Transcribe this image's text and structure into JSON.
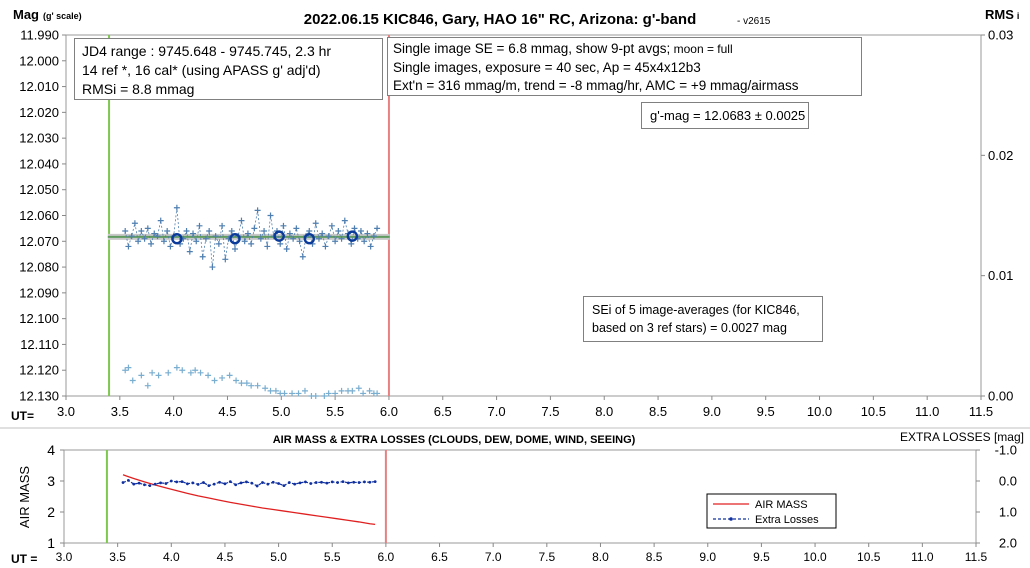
{
  "colors": {
    "upper_points": "#4f7fb0",
    "avg_marker": "#0a3a9a",
    "ref_points": "#7aaed0",
    "mean_band": "#c8c8c8",
    "mean_line": "#5f9a5f",
    "start_line": "#7ec850",
    "end_line": "#e88080",
    "airmass_line": "#e02020",
    "losses_line": "#1030a0"
  },
  "chart_data": [
    {
      "type": "scatter",
      "title": "2022.06.15 KIC846, Gary, HAO 16\" RC, Arizona: g'-band",
      "version": "- v2615",
      "ylabel_main": "Mag",
      "ylabel_sub": "(g' scale)",
      "y2label_main": "RMS",
      "y2label_sub": "i",
      "xlabel": "UT=",
      "xlim": [
        3.0,
        11.5
      ],
      "ylim": [
        12.13,
        11.99
      ],
      "y2lim": [
        0.0,
        0.03
      ],
      "x_ticks": [
        "3.0",
        "3.5",
        "4.0",
        "4.5",
        "5.0",
        "5.5",
        "6.0",
        "6.5",
        "7.0",
        "7.5",
        "8.0",
        "8.5",
        "9.0",
        "9.5",
        "10.0",
        "10.5",
        "11.0",
        "11.5"
      ],
      "y_ticks": [
        "11.990",
        "12.000",
        "12.010",
        "12.020",
        "12.030",
        "12.040",
        "12.050",
        "12.060",
        "12.070",
        "12.080",
        "12.090",
        "12.100",
        "12.110",
        "12.120",
        "12.130"
      ],
      "y2_ticks": [
        "0.00",
        "0.01",
        "0.02",
        "0.03"
      ],
      "grid": false,
      "vlines": [
        3.4,
        6.0
      ],
      "mean_mag": 12.0683,
      "mean_range": [
        3.5,
        5.95
      ],
      "series": [
        {
          "name": "individual images",
          "x": [
            3.55,
            3.58,
            3.61,
            3.64,
            3.67,
            3.7,
            3.73,
            3.76,
            3.79,
            3.82,
            3.85,
            3.88,
            3.91,
            3.94,
            3.97,
            4.0,
            4.03,
            4.06,
            4.09,
            4.12,
            4.15,
            4.18,
            4.21,
            4.24,
            4.27,
            4.3,
            4.33,
            4.36,
            4.39,
            4.42,
            4.45,
            4.48,
            4.51,
            4.54,
            4.57,
            4.6,
            4.63,
            4.66,
            4.69,
            4.72,
            4.75,
            4.78,
            4.81,
            4.84,
            4.87,
            4.9,
            4.93,
            4.96,
            4.99,
            5.02,
            5.05,
            5.08,
            5.11,
            5.14,
            5.17,
            5.2,
            5.23,
            5.26,
            5.29,
            5.32,
            5.35,
            5.38,
            5.41,
            5.44,
            5.47,
            5.5,
            5.53,
            5.56,
            5.59,
            5.62,
            5.65,
            5.68,
            5.71,
            5.74,
            5.77,
            5.8,
            5.83,
            5.86,
            5.89
          ],
          "y": [
            12.066,
            12.072,
            12.068,
            12.063,
            12.07,
            12.066,
            12.069,
            12.065,
            12.071,
            12.067,
            12.068,
            12.062,
            12.07,
            12.066,
            12.072,
            12.068,
            12.057,
            12.071,
            12.069,
            12.066,
            12.074,
            12.067,
            12.07,
            12.064,
            12.076,
            12.069,
            12.066,
            12.08,
            12.068,
            12.071,
            12.064,
            12.077,
            12.069,
            12.066,
            12.073,
            12.068,
            12.062,
            12.07,
            12.067,
            12.071,
            12.065,
            12.058,
            12.069,
            12.066,
            12.072,
            12.06,
            12.068,
            12.066,
            12.071,
            12.064,
            12.073,
            12.067,
            12.069,
            12.065,
            12.07,
            12.076,
            12.068,
            12.066,
            12.071,
            12.063,
            12.069,
            12.067,
            12.072,
            12.068,
            12.064,
            12.07,
            12.066,
            12.069,
            12.062,
            12.067,
            12.071,
            12.065,
            12.069,
            12.066,
            12.07,
            12.067,
            12.072,
            12.068,
            12.065
          ]
        },
        {
          "name": "9-pt averages",
          "x": [
            4.03,
            4.57,
            4.98,
            5.26,
            5.66
          ],
          "y": [
            12.069,
            12.069,
            12.068,
            12.069,
            12.068
          ]
        },
        {
          "name": "reference",
          "x": [
            3.55,
            3.58,
            3.62,
            3.7,
            3.76,
            3.8,
            3.86,
            3.95,
            4.03,
            4.08,
            4.16,
            4.2,
            4.25,
            4.32,
            4.38,
            4.45,
            4.52,
            4.58,
            4.63,
            4.68,
            4.72,
            4.78,
            4.85,
            4.9,
            4.95,
            4.99,
            5.03,
            5.1,
            5.16,
            5.22,
            5.28,
            5.32,
            5.4,
            5.44,
            5.5,
            5.56,
            5.62,
            5.66,
            5.72,
            5.76,
            5.82,
            5.86,
            5.89
          ],
          "y": [
            12.12,
            12.119,
            12.124,
            12.122,
            12.126,
            12.121,
            12.122,
            12.121,
            12.119,
            12.12,
            12.121,
            12.12,
            12.121,
            12.122,
            12.124,
            12.123,
            12.122,
            12.124,
            12.125,
            12.125,
            12.126,
            12.126,
            12.127,
            12.128,
            12.128,
            12.129,
            12.129,
            12.129,
            12.129,
            12.128,
            12.13,
            12.13,
            12.13,
            12.129,
            12.129,
            12.128,
            12.128,
            12.128,
            12.127,
            12.129,
            12.128,
            12.129,
            12.129
          ]
        }
      ]
    },
    {
      "type": "line",
      "title": "AIR MASS & EXTRA LOSSES (CLOUDS, DEW, DOME, WIND, SEEING)",
      "ylabel": "AIR MASS",
      "y2label": "EXTRA LOSSES [mag]",
      "xlabel": "UT =",
      "xlim": [
        3.0,
        11.5
      ],
      "ylim": [
        1,
        4
      ],
      "y2lim": [
        2.0,
        -1.0
      ],
      "x_ticks": [
        "3.0",
        "3.5",
        "4.0",
        "4.5",
        "5.0",
        "5.5",
        "6.0",
        "6.5",
        "7.0",
        "7.5",
        "8.0",
        "8.5",
        "9.0",
        "9.5",
        "10.0",
        "10.5",
        "11.0",
        "11.5"
      ],
      "y_ticks": [
        "1",
        "2",
        "3",
        "4"
      ],
      "y2_ticks": [
        "-1.0",
        "0.0",
        "1.0",
        "2.0"
      ],
      "vlines": [
        3.4,
        6.0
      ],
      "legend": "right",
      "series": [
        {
          "name": "AIR MASS",
          "axis": "left",
          "x": [
            3.55,
            3.65,
            3.75,
            3.85,
            3.95,
            4.05,
            4.15,
            4.25,
            4.35,
            4.45,
            4.55,
            4.65,
            4.75,
            4.85,
            4.95,
            5.05,
            5.15,
            5.25,
            5.35,
            5.45,
            5.55,
            5.65,
            5.75,
            5.85,
            5.9
          ],
          "y": [
            3.2,
            3.08,
            2.97,
            2.87,
            2.78,
            2.69,
            2.6,
            2.52,
            2.45,
            2.38,
            2.31,
            2.25,
            2.19,
            2.13,
            2.08,
            2.03,
            1.98,
            1.93,
            1.88,
            1.83,
            1.78,
            1.73,
            1.68,
            1.62,
            1.6
          ]
        },
        {
          "name": "Extra Losses",
          "axis": "right",
          "x": [
            3.55,
            3.6,
            3.65,
            3.7,
            3.75,
            3.8,
            3.85,
            3.9,
            3.95,
            4.0,
            4.05,
            4.1,
            4.15,
            4.2,
            4.25,
            4.3,
            4.35,
            4.4,
            4.45,
            4.5,
            4.55,
            4.6,
            4.65,
            4.7,
            4.75,
            4.8,
            4.85,
            4.9,
            4.95,
            5.0,
            5.05,
            5.1,
            5.15,
            5.2,
            5.25,
            5.3,
            5.35,
            5.4,
            5.45,
            5.5,
            5.55,
            5.6,
            5.65,
            5.7,
            5.75,
            5.8,
            5.85,
            5.9
          ],
          "y": [
            0.05,
            -0.02,
            0.1,
            0.07,
            0.12,
            0.15,
            0.1,
            0.06,
            0.08,
            0.0,
            0.03,
            0.02,
            0.09,
            0.06,
            0.11,
            0.05,
            0.15,
            0.1,
            0.04,
            0.09,
            0.02,
            0.12,
            0.06,
            0.03,
            0.07,
            0.16,
            0.05,
            0.1,
            0.04,
            0.08,
            0.15,
            0.05,
            0.1,
            0.06,
            0.03,
            0.08,
            0.05,
            0.04,
            0.07,
            0.03,
            0.05,
            0.02,
            0.06,
            0.04,
            0.05,
            0.03,
            0.04,
            0.02
          ]
        }
      ]
    }
  ],
  "annotations": {
    "jd_box": [
      "JD4 range : 9745.648 - 9745.745,  2.3 hr",
      "14 ref *, 16 cal* (using APASS g' adj'd)",
      "RMSi = 8.8 mmag"
    ],
    "info_box_line1_main": "Single image SE = 6.8 mmag, show  9-pt avgs;",
    "info_box_line1_small": " moon = full",
    "info_box_lines": [
      "Single images, exposure = 40 sec, Ap = 45x4x12b3",
      "Ext'n = 316 mmag/m, trend = -8 mmag/hr, AMC = +9 mmag/airmass"
    ],
    "gmag_box": "g'-mag = 12.0683 ± 0.0025",
    "sei_box": [
      "SEi of 5 image-averages (for KIC846,",
      "based on 3 ref stars) = 0.0027 mag"
    ]
  }
}
